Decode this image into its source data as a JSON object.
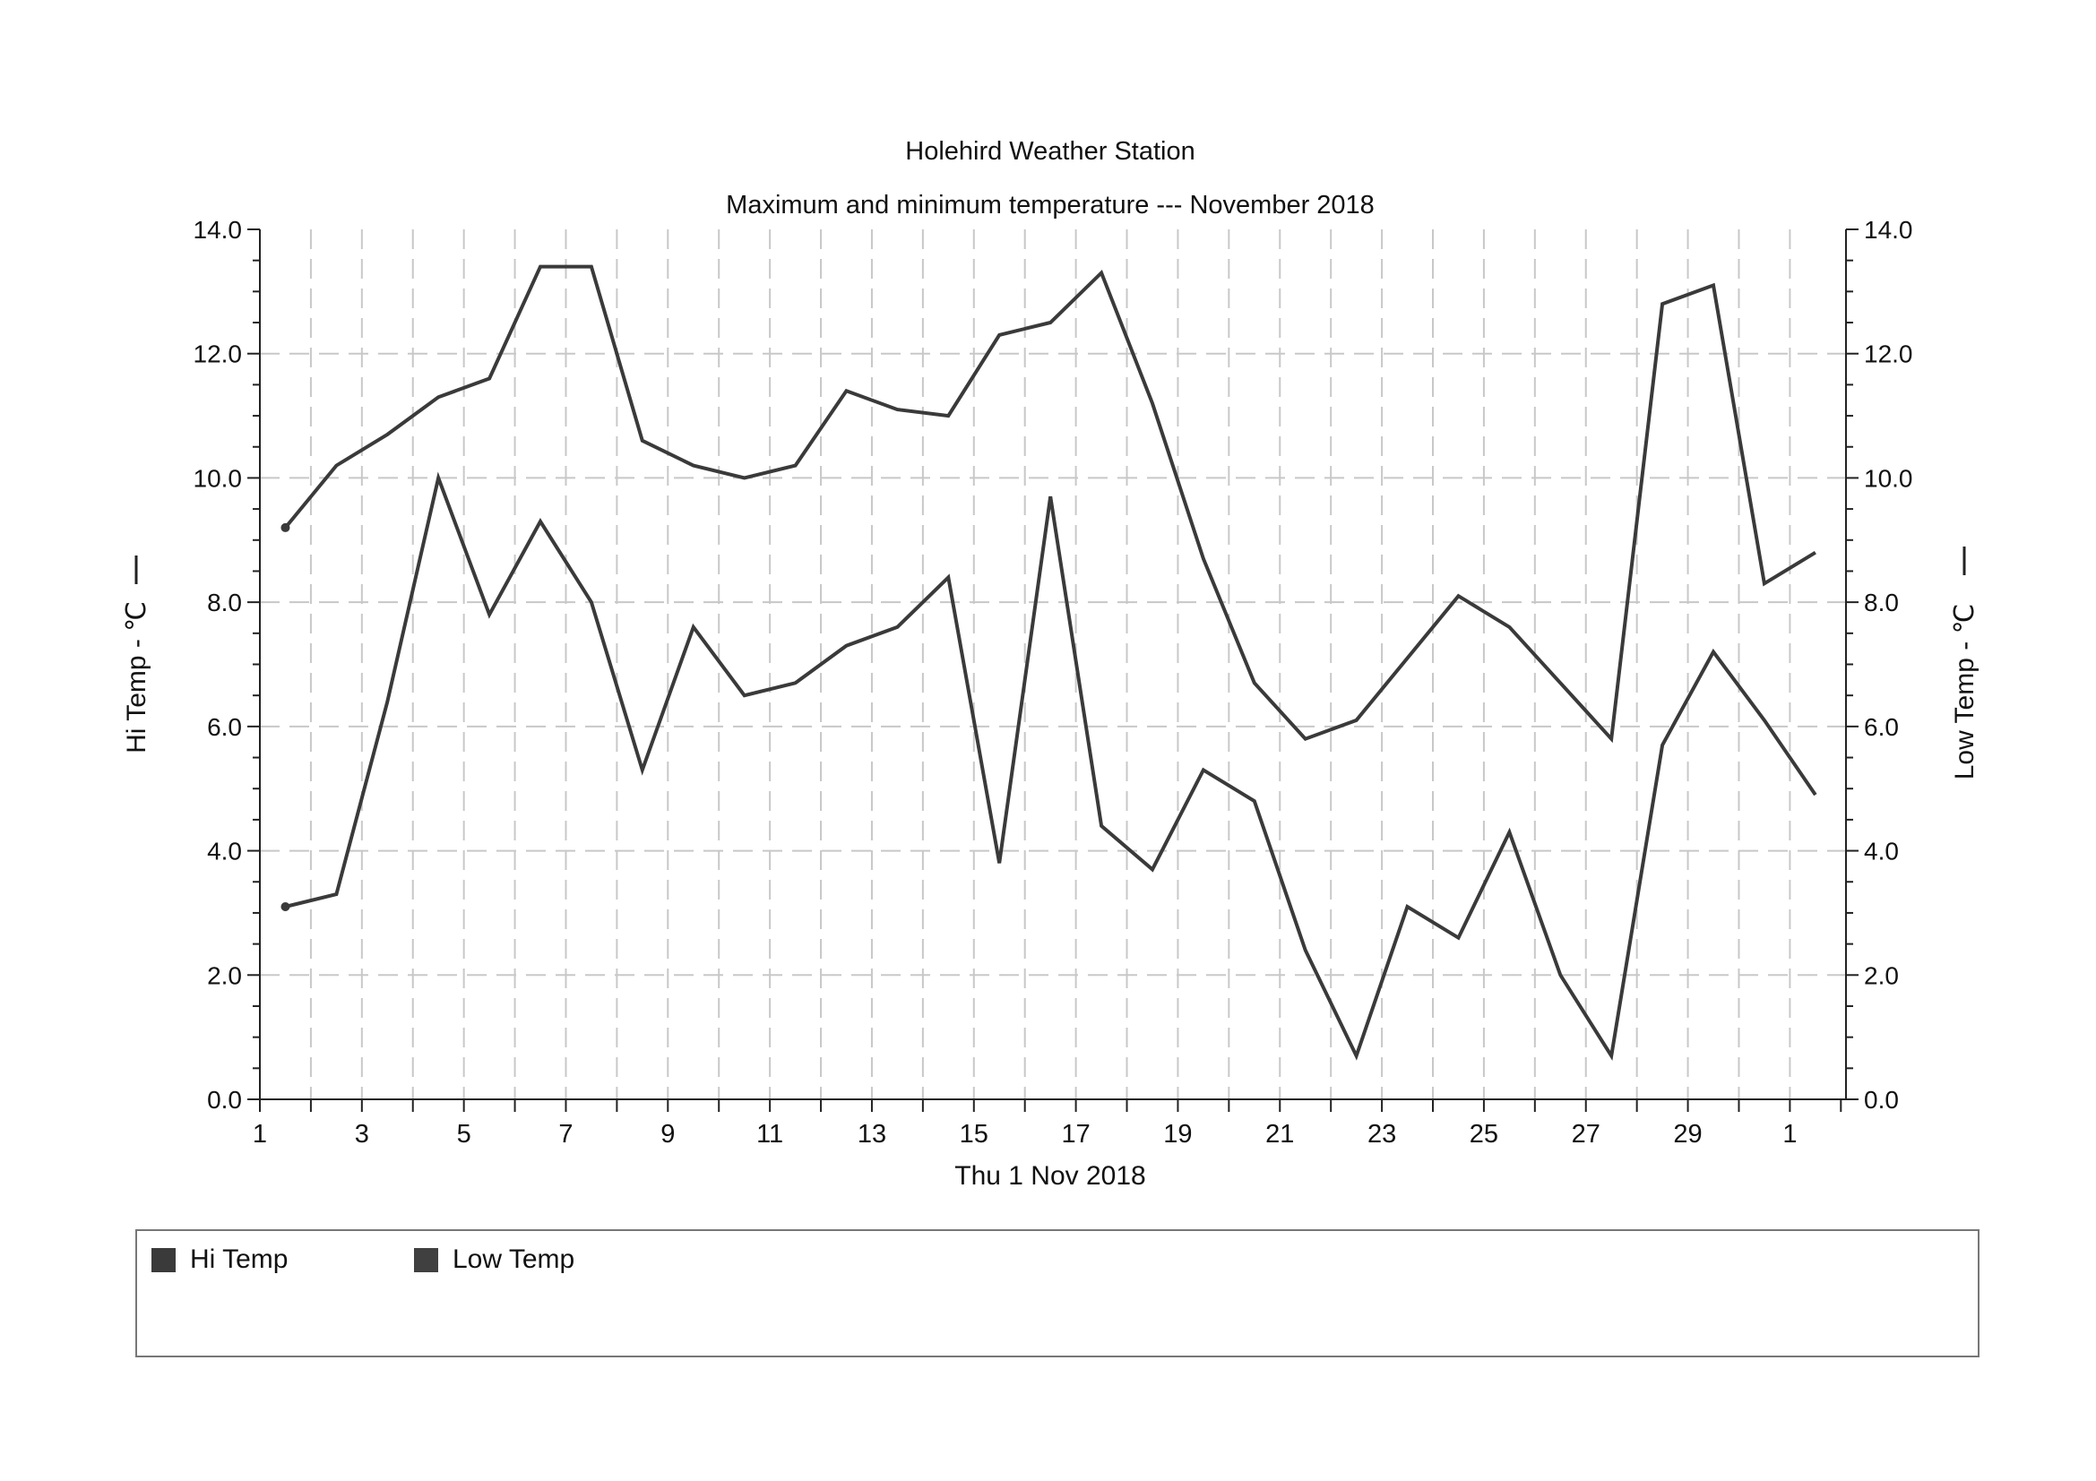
{
  "chart_data": {
    "type": "line",
    "title": "Holehird Weather Station",
    "subtitle": "Maximum and minimum temperature --- November 2018",
    "xlabel": "Thu 1 Nov 2018",
    "ylabel_left": "Hi Temp - ℃",
    "ylabel_right": "Low Temp - ℃",
    "ylim": [
      0,
      14
    ],
    "y_ticks": [
      "0.0",
      "2.0",
      "4.0",
      "6.0",
      "8.0",
      "10.0",
      "12.0",
      "14.0"
    ],
    "x_ticks": [
      "1",
      "3",
      "5",
      "7",
      "9",
      "11",
      "13",
      "15",
      "17",
      "19",
      "21",
      "23",
      "25",
      "27",
      "29",
      "1"
    ],
    "grid": true,
    "legend_position": "bottom",
    "series": [
      {
        "name": "Hi Temp",
        "color": "#3a3a3a",
        "values": [
          9.2,
          10.2,
          10.7,
          11.3,
          11.6,
          13.4,
          13.4,
          10.6,
          10.2,
          10.0,
          10.2,
          11.4,
          11.1,
          11.0,
          12.3,
          12.5,
          13.3,
          11.2,
          8.7,
          6.7,
          5.8,
          6.1,
          7.1,
          8.1,
          7.6,
          6.7,
          5.8,
          12.8,
          13.1,
          8.3,
          8.8
        ]
      },
      {
        "name": "Low Temp",
        "color": "#3a3a3a",
        "values": [
          3.1,
          3.3,
          6.4,
          10.0,
          7.8,
          9.3,
          8.0,
          5.3,
          7.6,
          6.5,
          6.7,
          7.3,
          7.6,
          8.4,
          3.8,
          9.7,
          4.4,
          3.7,
          5.3,
          4.8,
          2.4,
          0.7,
          3.1,
          2.6,
          4.3,
          2.0,
          0.7,
          5.7,
          7.2,
          6.1,
          4.9
        ]
      }
    ]
  },
  "legend": {
    "items": [
      {
        "label": "Hi Temp",
        "color": "#3a3a3a"
      },
      {
        "label": "Low Temp",
        "color": "#404040"
      }
    ]
  }
}
